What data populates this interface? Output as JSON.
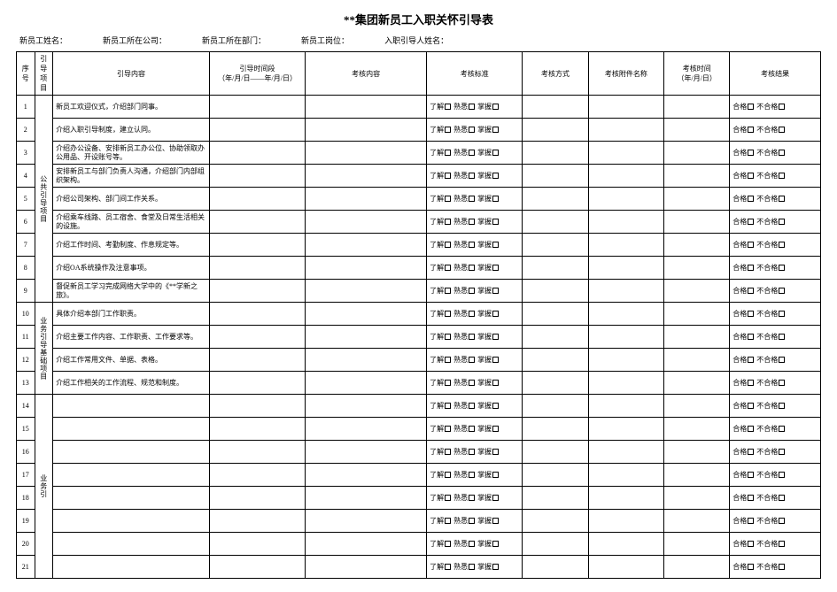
{
  "title": "**集团新员工入职关怀引导表",
  "meta": {
    "employee_name_label": "新员工姓名：",
    "employee_company_label": "新员工所在公司：",
    "employee_dept_label": "新员工所在部门：",
    "employee_post_label": "新员工岗位：",
    "mentor_name_label": "入职引导人姓名："
  },
  "columns": {
    "seq": "序号",
    "category": "引导项目",
    "content": "引导内容",
    "period": "引导时间段\n（年/月/日——年/月/日）",
    "assess_content": "考核内容",
    "standard": "考核标准",
    "method": "考核方式",
    "attachment": "考核附件名称",
    "assess_time": "考核时间\n（年/月/日）",
    "result": "考核结果"
  },
  "standard_options": {
    "a": "了解",
    "b": "熟悉",
    "c": "掌握"
  },
  "result_options": {
    "pass": "合格",
    "fail": "不合格"
  },
  "groups": [
    {
      "category": "公共引导项目",
      "rows": [
        {
          "seq": 1,
          "content": "新员工欢迎仪式，介绍部门同事。"
        },
        {
          "seq": 2,
          "content": "介绍入职引导制度，建立认同。"
        },
        {
          "seq": 3,
          "content": "介绍办公设备、安排新员工办公位、协助领取办公用品、开设账号等。"
        },
        {
          "seq": 4,
          "content": "安排新员工与部门负责人沟通，介绍部门内部组织架构。"
        },
        {
          "seq": 5,
          "content": "介绍公司架构、部门间工作关系。"
        },
        {
          "seq": 6,
          "content": "介绍乘车线路、员工宿舍、食堂及日常生活相关的设施。"
        },
        {
          "seq": 7,
          "content": "介绍工作时间、考勤制度、作息规定等。"
        },
        {
          "seq": 8,
          "content": "介绍OA系统操作及注意事项。"
        },
        {
          "seq": 9,
          "content": "督促新员工学习完成网络大学中的《**学新之旅》。"
        }
      ]
    },
    {
      "category": "业务引导基础项目",
      "rows": [
        {
          "seq": 10,
          "content": "具体介绍本部门工作职责。"
        },
        {
          "seq": 11,
          "content": "介绍主要工作内容、工作职责、工作要求等。"
        },
        {
          "seq": 12,
          "content": "介绍工作常用文件、单据、表格。"
        },
        {
          "seq": 13,
          "content": "介绍工作相关的工作流程、规范和制度。"
        }
      ]
    },
    {
      "category": "业务引",
      "rows": [
        {
          "seq": 14,
          "content": ""
        },
        {
          "seq": 15,
          "content": ""
        },
        {
          "seq": 16,
          "content": ""
        },
        {
          "seq": 17,
          "content": ""
        },
        {
          "seq": 18,
          "content": ""
        },
        {
          "seq": 19,
          "content": ""
        },
        {
          "seq": 20,
          "content": ""
        },
        {
          "seq": 21,
          "content": ""
        }
      ]
    }
  ]
}
